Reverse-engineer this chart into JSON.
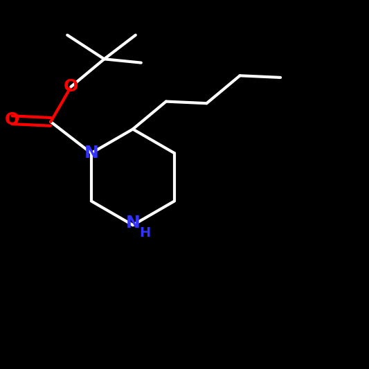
{
  "bg_color": "#000000",
  "bond_color": "#ffffff",
  "N_color": "#3333ff",
  "O_color": "#ff0000",
  "bond_width": 3.0,
  "font_size": 18,
  "figsize": [
    5.33,
    5.33
  ],
  "dpi": 100,
  "xlim": [
    0,
    10
  ],
  "ylim": [
    0,
    10
  ]
}
